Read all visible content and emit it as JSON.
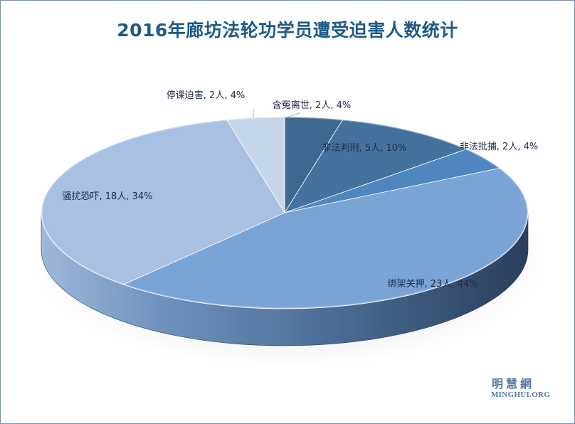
{
  "chart_data": {
    "type": "pie",
    "title": "2016年廊坊法轮功学员遭受迫害人数统计",
    "unit": "人",
    "slices": [
      {
        "name": "含冤离世",
        "value": 2,
        "percent": 4,
        "color": "#3e6890",
        "label": "含冤离世, 2人, 4%"
      },
      {
        "name": "非法判刑",
        "value": 5,
        "percent": 10,
        "color": "#44729c",
        "label": "非法判刑, 5人, 10%"
      },
      {
        "name": "非法批捕",
        "value": 2,
        "percent": 4,
        "color": "#4f86bf",
        "label": "非法批捕, 2人, 4%"
      },
      {
        "name": "绑架关押",
        "value": 23,
        "percent": 44,
        "color": "#7aa4d6",
        "label": "绑架关押, 23人, 44%"
      },
      {
        "name": "骚扰恐吓",
        "value": 18,
        "percent": 34,
        "color": "#a8c0e2",
        "label": "骚扰恐吓, 18人, 34%"
      },
      {
        "name": "停课迫害",
        "value": 2,
        "percent": 4,
        "color": "#c6d6ea",
        "label": "停课迫害, 2人, 4%"
      }
    ]
  },
  "watermark": {
    "name_cn": "明慧網",
    "name_en": "MINGHUI.ORG"
  }
}
